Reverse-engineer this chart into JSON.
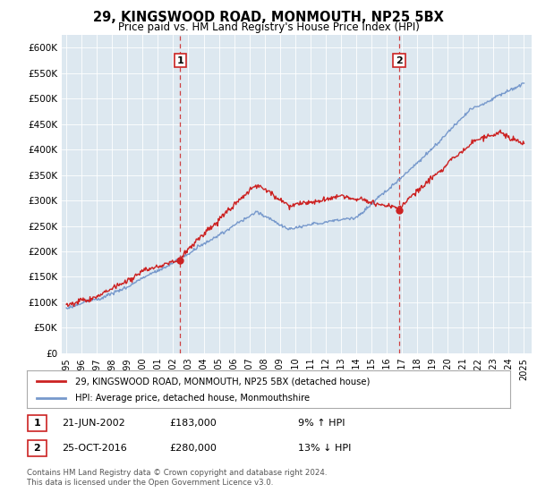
{
  "title": "29, KINGSWOOD ROAD, MONMOUTH, NP25 5BX",
  "subtitle": "Price paid vs. HM Land Registry's House Price Index (HPI)",
  "ylabel_ticks": [
    "£0",
    "£50K",
    "£100K",
    "£150K",
    "£200K",
    "£250K",
    "£300K",
    "£350K",
    "£400K",
    "£450K",
    "£500K",
    "£550K",
    "£600K"
  ],
  "ytick_values": [
    0,
    50000,
    100000,
    150000,
    200000,
    250000,
    300000,
    350000,
    400000,
    450000,
    500000,
    550000,
    600000
  ],
  "ylim": [
    0,
    625000
  ],
  "xlim_start": 1994.7,
  "xlim_end": 2025.5,
  "xticks": [
    1995,
    1996,
    1997,
    1998,
    1999,
    2000,
    2001,
    2002,
    2003,
    2004,
    2005,
    2006,
    2007,
    2008,
    2009,
    2010,
    2011,
    2012,
    2013,
    2014,
    2015,
    2016,
    2017,
    2018,
    2019,
    2020,
    2021,
    2022,
    2023,
    2024,
    2025
  ],
  "sale1_x": 2002.47,
  "sale1_y": 183000,
  "sale2_x": 2016.82,
  "sale2_y": 280000,
  "sale1_date": "21-JUN-2002",
  "sale1_price": "£183,000",
  "sale1_hpi": "9% ↑ HPI",
  "sale2_date": "25-OCT-2016",
  "sale2_price": "£280,000",
  "sale2_hpi": "13% ↓ HPI",
  "property_color": "#cc2222",
  "hpi_color": "#7799cc",
  "plot_bg_color": "#dde8f0",
  "legend_label1": "29, KINGSWOOD ROAD, MONMOUTH, NP25 5BX (detached house)",
  "legend_label2": "HPI: Average price, detached house, Monmouthshire",
  "footer1": "Contains HM Land Registry data © Crown copyright and database right 2024.",
  "footer2": "This data is licensed under the Open Government Licence v3.0."
}
